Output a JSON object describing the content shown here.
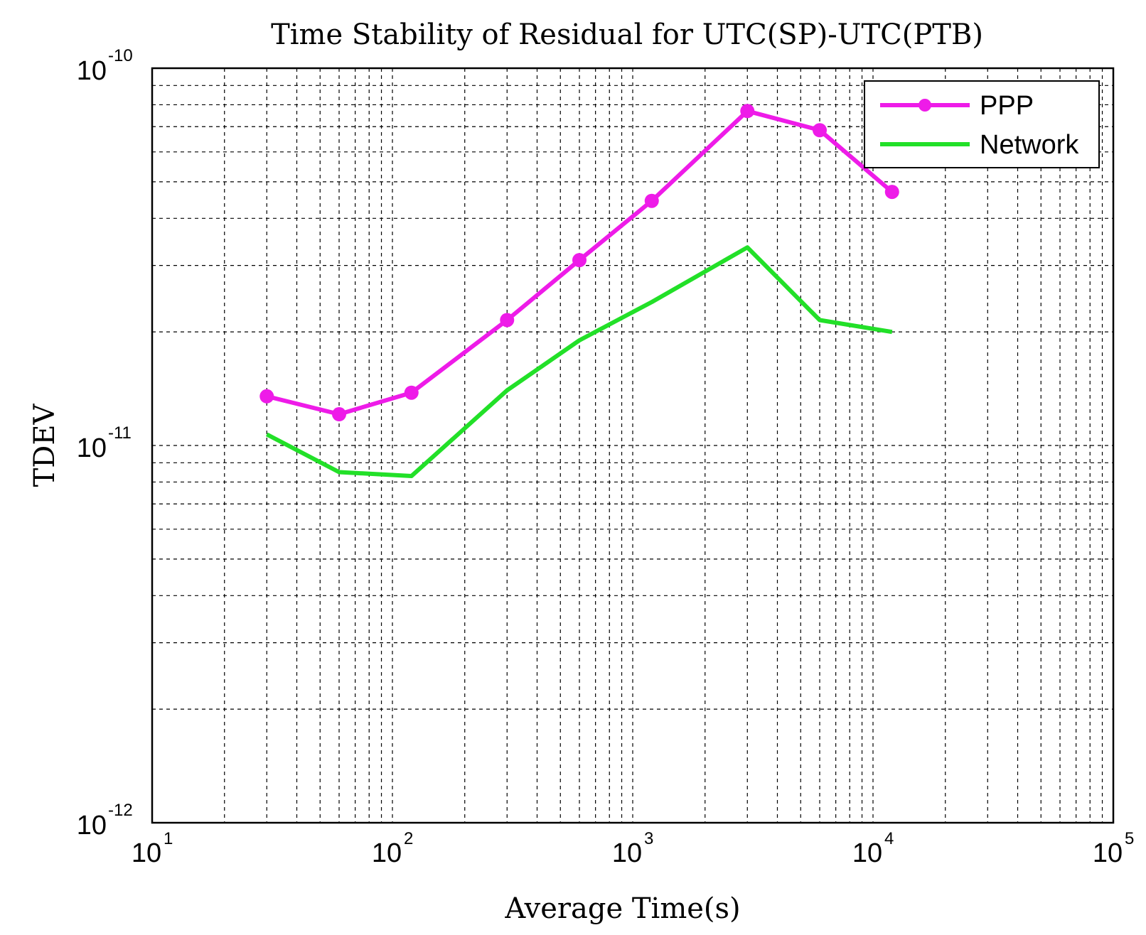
{
  "chart_data": {
    "type": "line",
    "title": "Time Stability of Residual for UTC(SP)-UTC(PTB)",
    "xlabel": "Average Time(s)",
    "ylabel": "TDEV",
    "xscale": "log",
    "yscale": "log",
    "xlim": [
      10,
      100000
    ],
    "ylim": [
      1e-12,
      1e-10
    ],
    "grid": true,
    "legend_position": "top-right",
    "x_ticks": [
      {
        "base": "10",
        "exp": "1"
      },
      {
        "base": "10",
        "exp": "2"
      },
      {
        "base": "10",
        "exp": "3"
      },
      {
        "base": "10",
        "exp": "4"
      },
      {
        "base": "10",
        "exp": "5"
      }
    ],
    "y_ticks": [
      {
        "base": "10",
        "exp": "-12"
      },
      {
        "base": "10",
        "exp": "-11"
      },
      {
        "base": "10",
        "exp": "-10"
      }
    ],
    "series": [
      {
        "name": "PPP",
        "color": "#ee1be8",
        "marker": "circle",
        "x": [
          30,
          60,
          120,
          300,
          600,
          1200,
          3000,
          6000,
          12000
        ],
        "y": [
          1.35e-11,
          1.21e-11,
          1.38e-11,
          2.15e-11,
          3.1e-11,
          4.45e-11,
          7.7e-11,
          6.85e-11,
          4.7e-11
        ]
      },
      {
        "name": "Network",
        "color": "#22e028",
        "marker": "none",
        "x": [
          30,
          60,
          120,
          300,
          600,
          1200,
          3000,
          6000,
          12000
        ],
        "y": [
          1.07e-11,
          8.5e-12,
          8.3e-12,
          1.4e-11,
          1.9e-11,
          2.4e-11,
          3.35e-11,
          2.15e-11,
          2e-11
        ]
      }
    ]
  }
}
